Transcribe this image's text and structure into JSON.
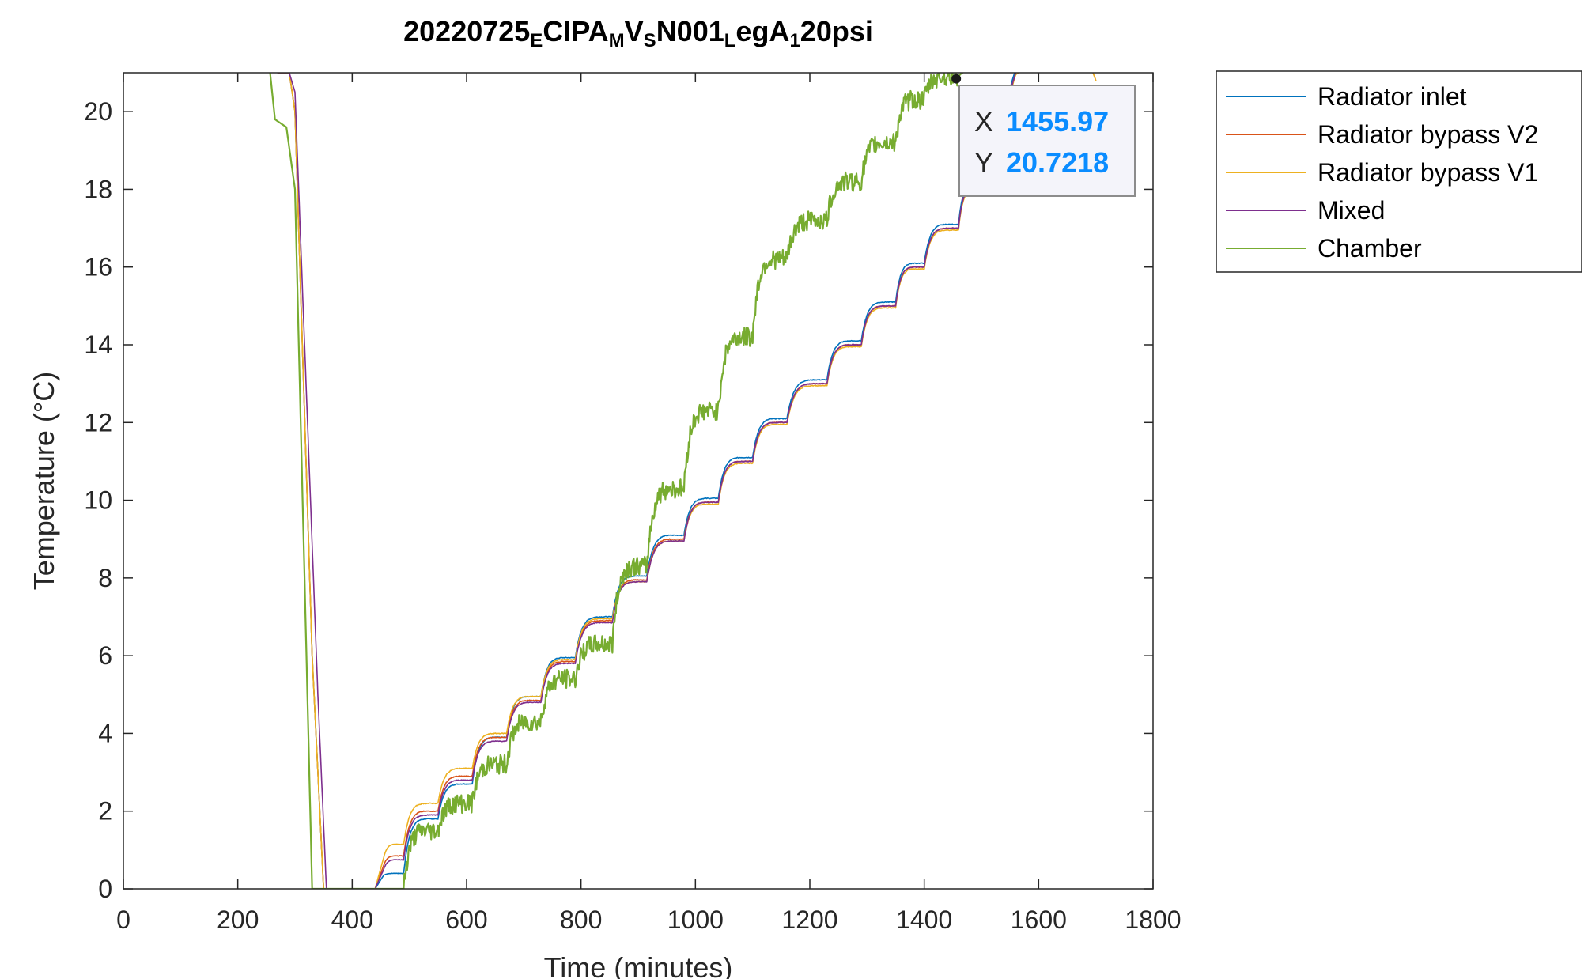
{
  "chart_data": {
    "type": "line",
    "title": {
      "parts": [
        {
          "text": "20220725",
          "sub": false
        },
        {
          "text": "E",
          "sub": true
        },
        {
          "text": "CIPA",
          "sub": false
        },
        {
          "text": "M",
          "sub": true
        },
        {
          "text": "V",
          "sub": false
        },
        {
          "text": "S",
          "sub": true
        },
        {
          "text": "N001",
          "sub": false
        },
        {
          "text": "L",
          "sub": true
        },
        {
          "text": "egA",
          "sub": false
        },
        {
          "text": "1",
          "sub": true
        },
        {
          "text": "20psi",
          "sub": false
        }
      ]
    },
    "xlabel": "Time (minutes)",
    "ylabel": "Temperature (°C)",
    "xlim": [
      0,
      1800
    ],
    "ylim": [
      0,
      21
    ],
    "xticks": [
      0,
      200,
      400,
      600,
      800,
      1000,
      1200,
      1400,
      1600,
      1800
    ],
    "yticks": [
      0,
      2,
      4,
      6,
      8,
      10,
      12,
      14,
      16,
      18,
      20
    ],
    "grid": false,
    "legend_position": "outside-top-right",
    "series": [
      {
        "name": "Radiator inlet",
        "color": "#0072BD",
        "offset": 0.12,
        "noise": 0.02,
        "points": [
          [
            255,
            21.2
          ],
          [
            270,
            21.0
          ],
          [
            290,
            21.0
          ],
          [
            300,
            20.0
          ],
          [
            330,
            6.0
          ],
          [
            350,
            0.0
          ],
          [
            440,
            0.0
          ],
          [
            455,
            0.35
          ],
          [
            490,
            0.4
          ],
          [
            550,
            1.8
          ],
          [
            610,
            2.7
          ],
          [
            670,
            3.9
          ],
          [
            730,
            4.95
          ],
          [
            790,
            5.95
          ],
          [
            855,
            7.0
          ],
          [
            915,
            8.05
          ],
          [
            980,
            9.1
          ],
          [
            1040,
            10.05
          ],
          [
            1100,
            11.1
          ],
          [
            1160,
            12.1
          ],
          [
            1230,
            13.1
          ],
          [
            1290,
            14.1
          ],
          [
            1350,
            15.1
          ],
          [
            1400,
            16.1
          ],
          [
            1460,
            17.1
          ],
          [
            1500,
            18.1
          ],
          [
            1520,
            19.1
          ],
          [
            1540,
            20.1
          ],
          [
            1560,
            21.1
          ]
        ]
      },
      {
        "name": "Radiator bypass V2",
        "color": "#D95319",
        "offset": 0.0,
        "noise": 0.02,
        "points": [
          [
            255,
            21.2
          ],
          [
            270,
            21.0
          ],
          [
            290,
            21.0
          ],
          [
            300,
            20.0
          ],
          [
            330,
            6.0
          ],
          [
            350,
            0.0
          ],
          [
            440,
            0.0
          ],
          [
            455,
            0.6
          ],
          [
            490,
            0.85
          ],
          [
            550,
            2.0
          ],
          [
            610,
            2.9
          ],
          [
            670,
            3.9
          ],
          [
            730,
            4.85
          ],
          [
            790,
            5.85
          ],
          [
            855,
            6.9
          ],
          [
            915,
            7.95
          ],
          [
            980,
            9.0
          ],
          [
            1040,
            9.95
          ],
          [
            1100,
            11.0
          ],
          [
            1160,
            12.0
          ],
          [
            1230,
            13.0
          ],
          [
            1290,
            14.0
          ],
          [
            1350,
            15.0
          ],
          [
            1400,
            16.0
          ],
          [
            1460,
            17.0
          ],
          [
            1500,
            18.0
          ],
          [
            1520,
            19.0
          ],
          [
            1540,
            20.0
          ],
          [
            1560,
            21.0
          ],
          [
            1690,
            21.2
          ],
          [
            1700,
            20.8
          ]
        ]
      },
      {
        "name": "Radiator bypass V1",
        "color": "#EDB120",
        "offset": -0.05,
        "noise": 0.02,
        "points": [
          [
            255,
            21.2
          ],
          [
            270,
            21.0
          ],
          [
            290,
            21.0
          ],
          [
            300,
            20.0
          ],
          [
            330,
            6.0
          ],
          [
            350,
            0.0
          ],
          [
            440,
            0.0
          ],
          [
            455,
            0.8
          ],
          [
            490,
            1.15
          ],
          [
            550,
            2.2
          ],
          [
            610,
            3.1
          ],
          [
            670,
            4.0
          ],
          [
            730,
            4.95
          ],
          [
            790,
            5.9
          ],
          [
            855,
            6.95
          ],
          [
            915,
            7.9
          ],
          [
            980,
            8.95
          ],
          [
            1040,
            9.9
          ],
          [
            1100,
            10.95
          ],
          [
            1160,
            11.95
          ],
          [
            1230,
            12.95
          ],
          [
            1290,
            13.95
          ],
          [
            1350,
            14.95
          ],
          [
            1400,
            15.95
          ],
          [
            1460,
            16.95
          ],
          [
            1500,
            17.95
          ],
          [
            1520,
            18.95
          ],
          [
            1540,
            19.95
          ],
          [
            1560,
            20.95
          ],
          [
            1690,
            21.2
          ],
          [
            1700,
            20.8
          ]
        ]
      },
      {
        "name": "Mixed",
        "color": "#7E2F8E",
        "offset": 0.05,
        "noise": 0.02,
        "points": [
          [
            255,
            21.2
          ],
          [
            270,
            21.0
          ],
          [
            290,
            21.0
          ],
          [
            300,
            20.5
          ],
          [
            340,
            5.0
          ],
          [
            355,
            0.0
          ],
          [
            440,
            0.0
          ],
          [
            455,
            0.5
          ],
          [
            490,
            0.75
          ],
          [
            550,
            1.9
          ],
          [
            610,
            2.8
          ],
          [
            670,
            3.8
          ],
          [
            730,
            4.8
          ],
          [
            790,
            5.8
          ],
          [
            855,
            6.85
          ],
          [
            915,
            7.9
          ],
          [
            980,
            8.95
          ],
          [
            1040,
            9.95
          ],
          [
            1100,
            11.0
          ],
          [
            1160,
            12.0
          ],
          [
            1230,
            13.0
          ],
          [
            1290,
            14.0
          ],
          [
            1350,
            15.0
          ],
          [
            1400,
            16.0
          ],
          [
            1460,
            17.0
          ],
          [
            1500,
            18.0
          ],
          [
            1520,
            19.0
          ],
          [
            1540,
            20.0
          ],
          [
            1560,
            21.0
          ]
        ]
      },
      {
        "name": "Chamber",
        "color": "#77AC30",
        "offset": -0.6,
        "noise": 0.25,
        "points": [
          [
            255,
            21.2
          ],
          [
            265,
            19.8
          ],
          [
            285,
            19.6
          ],
          [
            300,
            18.0
          ],
          [
            330,
            0.0
          ],
          [
            490,
            0.0
          ],
          [
            550,
            1.5
          ],
          [
            610,
            2.2
          ],
          [
            670,
            3.2
          ],
          [
            730,
            4.3
          ],
          [
            790,
            5.4
          ],
          [
            855,
            6.3
          ],
          [
            915,
            8.3
          ],
          [
            980,
            10.3
          ],
          [
            1040,
            12.3
          ],
          [
            1100,
            14.2
          ],
          [
            1160,
            16.2
          ],
          [
            1230,
            17.2
          ],
          [
            1290,
            18.2
          ],
          [
            1350,
            19.2
          ],
          [
            1400,
            20.3
          ],
          [
            1460,
            20.9
          ],
          [
            1500,
            21.05
          ],
          [
            1545,
            21.05
          ],
          [
            1560,
            21.3
          ]
        ]
      }
    ],
    "datatip": {
      "x_label": "X",
      "x_value": "1455.97",
      "y_label": "Y",
      "y_value": "20.7218",
      "x": 1455.97,
      "y": 20.7218
    }
  }
}
